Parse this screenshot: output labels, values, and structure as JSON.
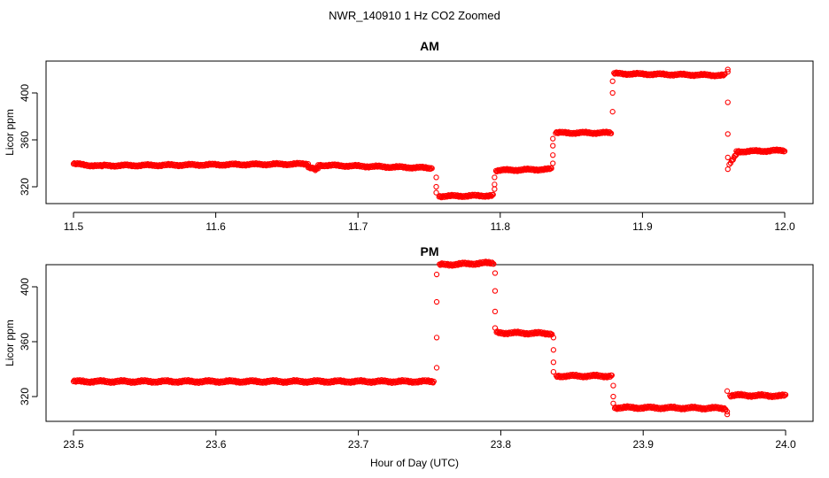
{
  "figure": {
    "title": "NWR_140910  1 Hz CO2 Zoomed",
    "xlabel": "Hour of Day (UTC)"
  },
  "chart_data": [
    {
      "type": "scatter",
      "title": "AM",
      "xlabel": "",
      "ylabel": "Licor ppm",
      "xlim": [
        11.5,
        12.0
      ],
      "ylim": [
        306,
        422
      ],
      "xticks": [
        "11.5",
        "11.6",
        "11.7",
        "11.8",
        "11.9",
        "12.0"
      ],
      "yticks": [
        "320",
        "360",
        "400"
      ],
      "grid": false,
      "color": "#ff0000",
      "segments": [
        {
          "x0": 11.5,
          "x1": 11.52,
          "y0": 339.5,
          "y1": 337.5
        },
        {
          "x0": 11.52,
          "x1": 11.665,
          "y0": 338.0,
          "y1": 339.5
        },
        {
          "x0": 11.665,
          "x1": 11.672,
          "y0": 336.0,
          "y1": 336.0
        },
        {
          "x0": 11.672,
          "x1": 11.752,
          "y0": 338.5,
          "y1": 336.0
        },
        {
          "x0": 11.757,
          "x1": 11.795,
          "y0": 312.0,
          "y1": 312.5
        },
        {
          "x0": 11.797,
          "x1": 11.836,
          "y0": 334.0,
          "y1": 335.0
        },
        {
          "x0": 11.839,
          "x1": 11.878,
          "y0": 366.0,
          "y1": 366.0
        },
        {
          "x0": 11.88,
          "x1": 11.958,
          "y0": 416.5,
          "y1": 415.0
        },
        {
          "x0": 11.962,
          "x1": 11.966,
          "y0": 340.0,
          "y1": 348.0
        },
        {
          "x0": 11.966,
          "x1": 12.0,
          "y0": 350.0,
          "y1": 351.0
        }
      ],
      "transitions": [
        {
          "x": 11.755,
          "values": [
            328,
            320,
            315
          ]
        },
        {
          "x": 11.796,
          "values": [
            318,
            322,
            328
          ]
        },
        {
          "x": 11.837,
          "values": [
            340,
            347,
            355,
            361
          ]
        },
        {
          "x": 11.879,
          "values": [
            384,
            400,
            410
          ]
        },
        {
          "x": 11.96,
          "values": [
            420,
            418,
            392,
            365,
            345,
            335
          ]
        }
      ],
      "points": [
        {
          "x": 11.67,
          "y": 334
        },
        {
          "x": 11.961,
          "y": 339
        }
      ]
    },
    {
      "type": "scatter",
      "title": "PM",
      "xlabel": "",
      "ylabel": "Licor ppm",
      "xlim": [
        23.5,
        24.0
      ],
      "ylim": [
        306,
        422
      ],
      "xticks": [
        "23.5",
        "23.6",
        "23.7",
        "23.8",
        "23.9",
        "24.0"
      ],
      "yticks": [
        "320",
        "360",
        "400"
      ],
      "grid": false,
      "color": "#ff0000",
      "segments": [
        {
          "x0": 23.5,
          "x1": 23.753,
          "y0": 331.0,
          "y1": 331.0
        },
        {
          "x0": 23.757,
          "x1": 23.795,
          "y0": 416.0,
          "y1": 417.5
        },
        {
          "x0": 23.797,
          "x1": 23.836,
          "y0": 366.5,
          "y1": 366.0
        },
        {
          "x0": 23.839,
          "x1": 23.878,
          "y0": 335.0,
          "y1": 335.0
        },
        {
          "x0": 23.88,
          "x1": 23.958,
          "y0": 312.0,
          "y1": 311.5
        },
        {
          "x0": 23.961,
          "x1": 24.0,
          "y0": 321.0,
          "y1": 320.5
        }
      ],
      "transitions": [
        {
          "x": 23.755,
          "values": [
            341,
            363,
            389,
            409
          ]
        },
        {
          "x": 23.796,
          "values": [
            410,
            397,
            382,
            370
          ]
        },
        {
          "x": 23.837,
          "values": [
            363,
            354,
            345,
            338
          ]
        },
        {
          "x": 23.879,
          "values": [
            328,
            320,
            315
          ]
        },
        {
          "x": 23.959,
          "values": [
            309,
            307,
            324
          ]
        }
      ],
      "points": []
    }
  ]
}
